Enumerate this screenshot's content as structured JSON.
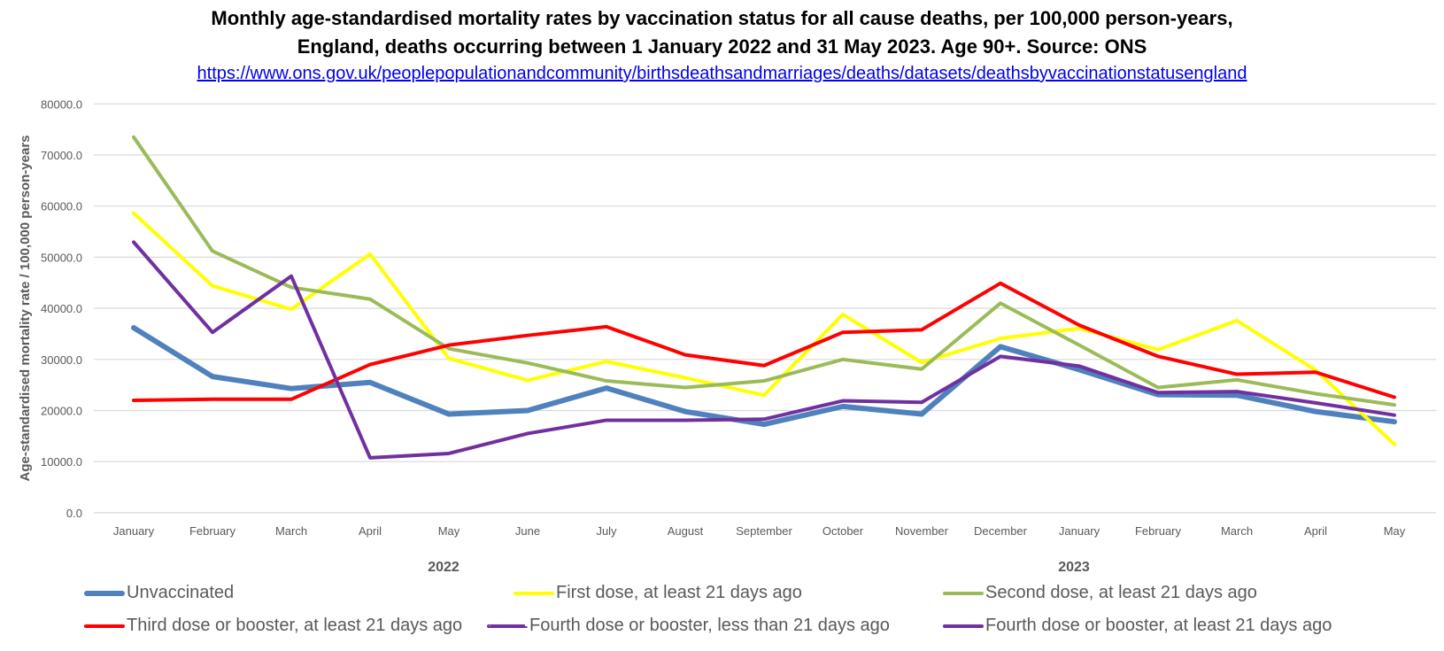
{
  "chart_data": {
    "type": "line",
    "title": "Monthly age-standardised mortality rates by vaccination status for all cause deaths, per 100,000 person-years,",
    "subtitle": "England, deaths occurring between 1 January 2022 and 31 May  2023. Age 90+. Source: ONS",
    "source_link": "https://www.ons.gov.uk/peoplepopulationandcommunity/birthsdeathsandmarriages/deaths/datasets/deathsbyvaccinationstatusengland",
    "xlabel": "",
    "ylabel": "Age-standardised mortality rate / 100,000 person-years",
    "ylim": [
      0,
      80000
    ],
    "yticks": [
      "0.0",
      "10000.0",
      "20000.0",
      "30000.0",
      "40000.0",
      "50000.0",
      "60000.0",
      "70000.0",
      "80000.0"
    ],
    "ytick_values": [
      0,
      10000,
      20000,
      30000,
      40000,
      50000,
      60000,
      70000,
      80000
    ],
    "grid": true,
    "legend_position": "bottom",
    "categories": [
      "January",
      "February",
      "March",
      "April",
      "May",
      "June",
      "July",
      "August",
      "September",
      "October",
      "November",
      "December",
      "January",
      "February",
      "March",
      "April",
      "May"
    ],
    "year_groups": [
      {
        "label": "2022",
        "anchor_index": 4
      },
      {
        "label": "2023",
        "anchor_index": 12
      }
    ],
    "series": [
      {
        "name": "Unvaccinated",
        "color": "#4F81BD",
        "style": "thick",
        "values": [
          36200,
          26650,
          24300,
          25500,
          19300,
          20000,
          24400,
          19800,
          17300,
          20800,
          19300,
          32500,
          28000,
          23100,
          23000,
          19800,
          17800
        ]
      },
      {
        "name": "First dose, at least 21 days ago",
        "color": "#FFFF00",
        "style": "solid",
        "values": [
          58600,
          44400,
          39800,
          50600,
          30200,
          25900,
          29600,
          26400,
          23000,
          38800,
          29400,
          34100,
          36100,
          31900,
          37600,
          27900,
          13400
        ]
      },
      {
        "name": "Second dose, at least 21 days ago",
        "color": "#9BBB59",
        "style": "solid",
        "values": [
          73500,
          51200,
          44100,
          41800,
          32100,
          29300,
          25800,
          24500,
          25800,
          30000,
          28100,
          41000,
          32800,
          24500,
          26000,
          23300,
          21100
        ]
      },
      {
        "name": "Third dose or booster, at least 21 days ago",
        "color": "#FF0000",
        "style": "solid",
        "values": [
          22000,
          22200,
          22200,
          29000,
          32800,
          34700,
          36400,
          30900,
          28800,
          35300,
          35800,
          44900,
          36700,
          30600,
          27100,
          27500,
          22600
        ]
      },
      {
        "name": "Fourth dose or booster, less than 21 days ago",
        "color": "#7030A0",
        "style": "dashed",
        "values": []
      },
      {
        "name": "Fourth dose or booster, at least 21 days ago",
        "color": "#7030A0",
        "style": "solid",
        "values": [
          52950,
          35300,
          46300,
          10750,
          11600,
          15500,
          18100,
          18100,
          18300,
          21900,
          21600,
          30600,
          28700,
          23500,
          23700,
          21500,
          19100
        ]
      }
    ]
  }
}
